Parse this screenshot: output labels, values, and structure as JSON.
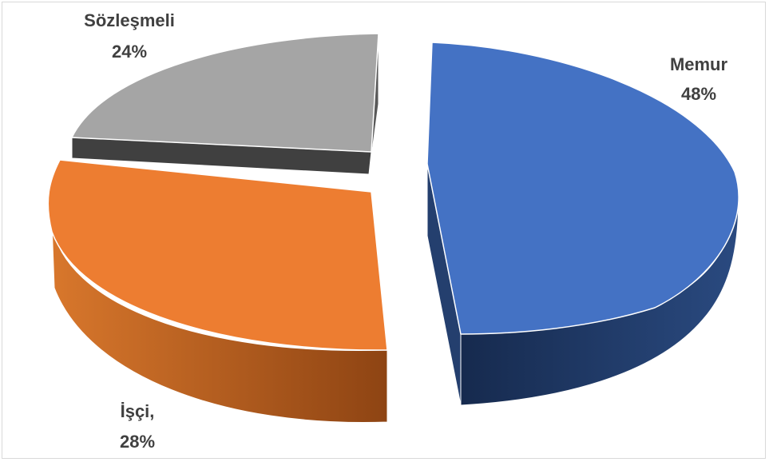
{
  "chart_data": {
    "type": "pie",
    "title": "",
    "three_d": true,
    "exploded": true,
    "legend": "none",
    "slices": [
      {
        "name": "Memur",
        "value": 48,
        "label": "48%",
        "color": "#4472C4",
        "side_color": "#1F3864"
      },
      {
        "name": "İşçi,",
        "value": 28,
        "label": "28%",
        "color": "#ED7D31",
        "side_color": "#C55A11"
      },
      {
        "name": "Sözleşmeli",
        "value": 24,
        "label": "24%",
        "color": "#A5A5A5",
        "side_color": "#404040"
      }
    ]
  }
}
